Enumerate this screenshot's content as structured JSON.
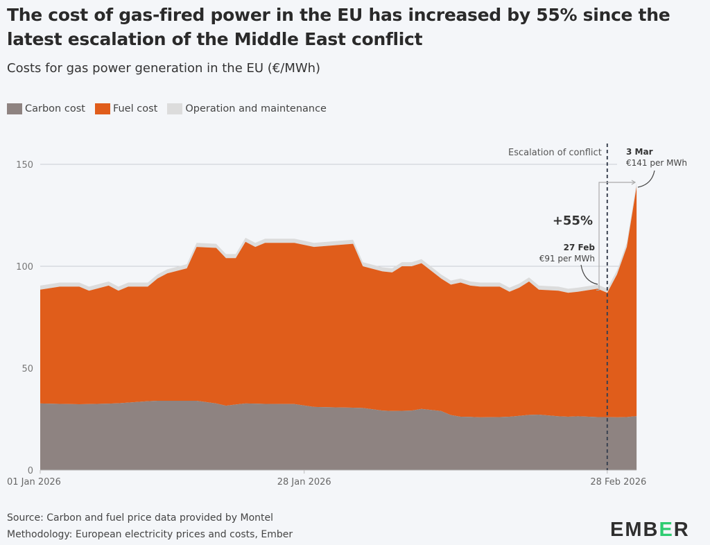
{
  "title": "The cost of gas-fired power in the EU has increased by 55% since the latest escalation of the Middle East conflict",
  "subtitle": "Costs for gas power generation in the EU (€/MWh)",
  "colors": {
    "carbon": "#8e8381",
    "fuel": "#e05d1b",
    "om": "#dcdcdc",
    "background": "#f4f6f9",
    "logo_accent": "#2ecc71"
  },
  "chart_data": {
    "type": "area",
    "stacked": true,
    "title": "Costs for gas power generation in the EU (€/MWh)",
    "ylim": [
      0,
      155
    ],
    "yticks": [
      0,
      50,
      100,
      150
    ],
    "xtick_labels": [
      "01 Jan 2026",
      "28 Jan 2026",
      "28 Feb 2026"
    ],
    "xtick_dates": [
      "2026-01-01",
      "2026-01-28",
      "2026-02-28"
    ],
    "legend_position": "top-left",
    "grid": "horizontal",
    "dates": [
      "2026-01-01",
      "2026-01-03",
      "2026-01-05",
      "2026-01-06",
      "2026-01-08",
      "2026-01-09",
      "2026-01-10",
      "2026-01-12",
      "2026-01-13",
      "2026-01-14",
      "2026-01-16",
      "2026-01-17",
      "2026-01-19",
      "2026-01-20",
      "2026-01-21",
      "2026-01-22",
      "2026-01-23",
      "2026-01-24",
      "2026-01-27",
      "2026-01-29",
      "2026-02-02",
      "2026-02-03",
      "2026-02-05",
      "2026-02-06",
      "2026-02-07",
      "2026-02-08",
      "2026-02-09",
      "2026-02-11",
      "2026-02-12",
      "2026-02-13",
      "2026-02-14",
      "2026-02-15",
      "2026-02-17",
      "2026-02-18",
      "2026-02-19",
      "2026-02-20",
      "2026-02-21",
      "2026-02-23",
      "2026-02-24",
      "2026-02-25",
      "2026-02-27",
      "2026-02-28",
      "2026-03-01",
      "2026-03-02",
      "2026-03-03"
    ],
    "series": [
      {
        "name": "Carbon cost",
        "values": [
          32.7,
          32.5,
          32.3,
          32.4,
          32.6,
          32.8,
          33.1,
          33.8,
          34,
          34,
          34,
          34,
          32.7,
          31.6,
          32.2,
          32.7,
          32.6,
          32.5,
          32.4,
          31,
          30.6,
          30.5,
          29.2,
          29,
          29.1,
          29.2,
          30,
          29,
          27,
          26.2,
          26.1,
          25.9,
          26,
          26.2,
          26.6,
          27.1,
          27.2,
          26.4,
          26.2,
          26.4,
          26,
          26,
          25.9,
          26,
          26.5
        ]
      },
      {
        "name": "Fuel cost",
        "values": [
          55.8,
          57.5,
          57.7,
          55.6,
          57.9,
          55.2,
          56.9,
          56.2,
          60,
          62.5,
          65,
          75.5,
          76.3,
          72.4,
          71.8,
          79.3,
          76.9,
          79,
          79.1,
          78.5,
          80.4,
          69.5,
          68.3,
          68,
          70.9,
          70.8,
          71.5,
          65,
          64,
          65.8,
          64.4,
          64.1,
          64,
          61.3,
          62.9,
          65.4,
          61.3,
          61.6,
          60.8,
          61.1,
          63,
          61,
          70.1,
          83.5,
          112.5
        ]
      },
      {
        "name": "Operation and maintenance",
        "values": [
          2,
          2,
          2,
          2,
          2,
          2,
          2,
          2,
          2,
          2,
          2,
          2,
          2,
          2,
          2,
          2,
          2,
          2,
          2,
          2,
          2,
          2,
          2,
          2,
          2,
          2,
          2,
          2,
          2,
          2,
          2,
          2,
          2,
          2,
          2,
          2,
          2,
          2,
          2,
          2,
          2,
          2,
          2,
          2,
          2
        ]
      }
    ],
    "annotations": {
      "event_date": "2026-02-28",
      "event_label": "Escalation of conflict",
      "start_label_date": "27 Feb",
      "start_label_value": "€91 per MWh",
      "end_label_date": "3 Mar",
      "end_label_value": "€141 per MWh",
      "change_label": "+55%",
      "start_value": 91,
      "end_value": 141
    }
  },
  "footer": {
    "source": "Source: Carbon and fuel price data provided by Montel",
    "methodology": "Methodology: European electricity prices and costs, Ember"
  },
  "logo": {
    "text": "EMBER"
  }
}
